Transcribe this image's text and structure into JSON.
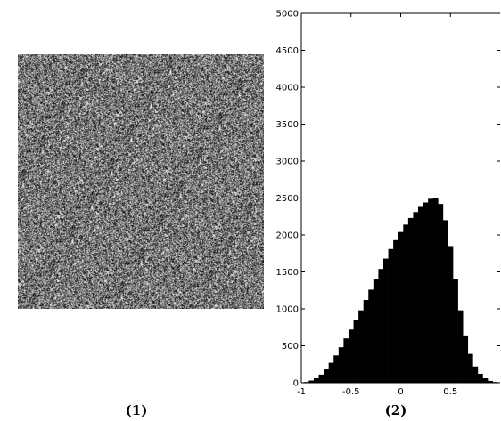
{
  "panels": [
    {
      "caption": "(1)",
      "content": "noise-image"
    },
    {
      "caption": "(2)"
    }
  ],
  "chart_data": {
    "type": "bar",
    "title": "",
    "xlabel": "",
    "ylabel": "",
    "xlim": [
      -1,
      1
    ],
    "ylim": [
      0,
      5000
    ],
    "xticks": [
      -1,
      -0.5,
      0,
      0.5
    ],
    "xtick_labels": [
      "-1",
      "-0.5",
      "0",
      "0.5"
    ],
    "yticks": [
      0,
      500,
      1000,
      1500,
      2000,
      2500,
      3000,
      3500,
      4000,
      4500,
      5000
    ],
    "ytick_labels": [
      "0",
      "500",
      "1000",
      "1500",
      "2000",
      "2500",
      "3000",
      "3500",
      "4000",
      "4500",
      "5000"
    ],
    "grid": false,
    "bar_color": "#000000",
    "bin_centers": [
      -0.95,
      -0.9,
      -0.85,
      -0.8,
      -0.75,
      -0.7,
      -0.65,
      -0.6,
      -0.55,
      -0.5,
      -0.45,
      -0.4,
      -0.35,
      -0.3,
      -0.25,
      -0.2,
      -0.15,
      -0.1,
      -0.05,
      0.0,
      0.05,
      0.1,
      0.15,
      0.2,
      0.25,
      0.3,
      0.35,
      0.4,
      0.45,
      0.5,
      0.55,
      0.6,
      0.65,
      0.7,
      0.75,
      0.8,
      0.85,
      0.9,
      0.95
    ],
    "values": [
      10,
      30,
      60,
      110,
      180,
      270,
      370,
      480,
      600,
      720,
      850,
      980,
      1120,
      1260,
      1400,
      1540,
      1680,
      1810,
      1930,
      2040,
      2140,
      2230,
      2310,
      2380,
      2440,
      2490,
      2500,
      2420,
      2200,
      1850,
      1400,
      980,
      640,
      390,
      220,
      120,
      60,
      25,
      10
    ]
  }
}
